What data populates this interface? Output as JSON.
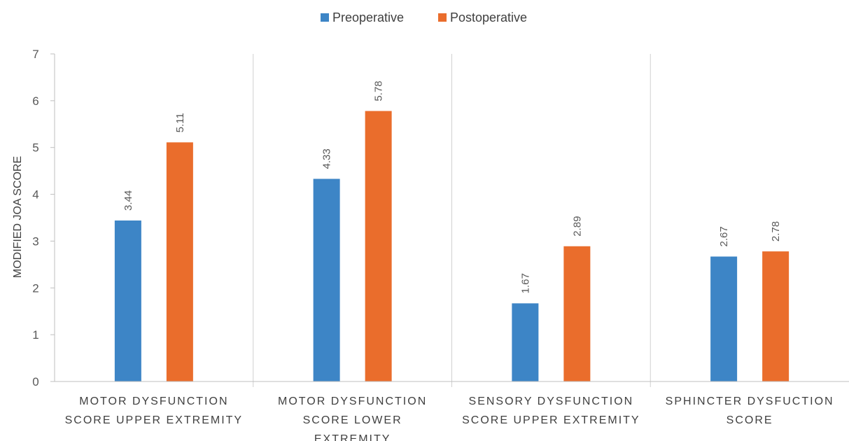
{
  "chart_data": {
    "type": "bar",
    "title": "",
    "xlabel": "",
    "ylabel": "MODIFIED JOA SCORE",
    "ylim": [
      0,
      7
    ],
    "yticks": [
      0,
      1,
      2,
      3,
      4,
      5,
      6,
      7
    ],
    "grid": false,
    "legend": "top-center",
    "categories": [
      [
        "MOTOR DYSFUNCTION",
        "SCORE UPPER EXTREMITY"
      ],
      [
        "MOTOR DYSFUNCTION",
        "SCORE LOWER",
        "EXTREMITY"
      ],
      [
        "SENSORY DYSFUNCTION",
        "SCORE UPPER EXTREMITY"
      ],
      [
        "SPHINCTER DYSFUCTION",
        "SCORE"
      ]
    ],
    "series": [
      {
        "name": "Preoperative",
        "color": "#3D85C6",
        "values": [
          3.44,
          4.33,
          1.67,
          2.67
        ],
        "labels": [
          "3.44",
          "4.33",
          "1.67",
          "2.67"
        ]
      },
      {
        "name": "Postoperative",
        "color": "#EA6D2C",
        "values": [
          5.11,
          5.78,
          2.89,
          2.78
        ],
        "labels": [
          "5.11",
          "5.78",
          "2.89",
          "2.78"
        ]
      }
    ]
  }
}
